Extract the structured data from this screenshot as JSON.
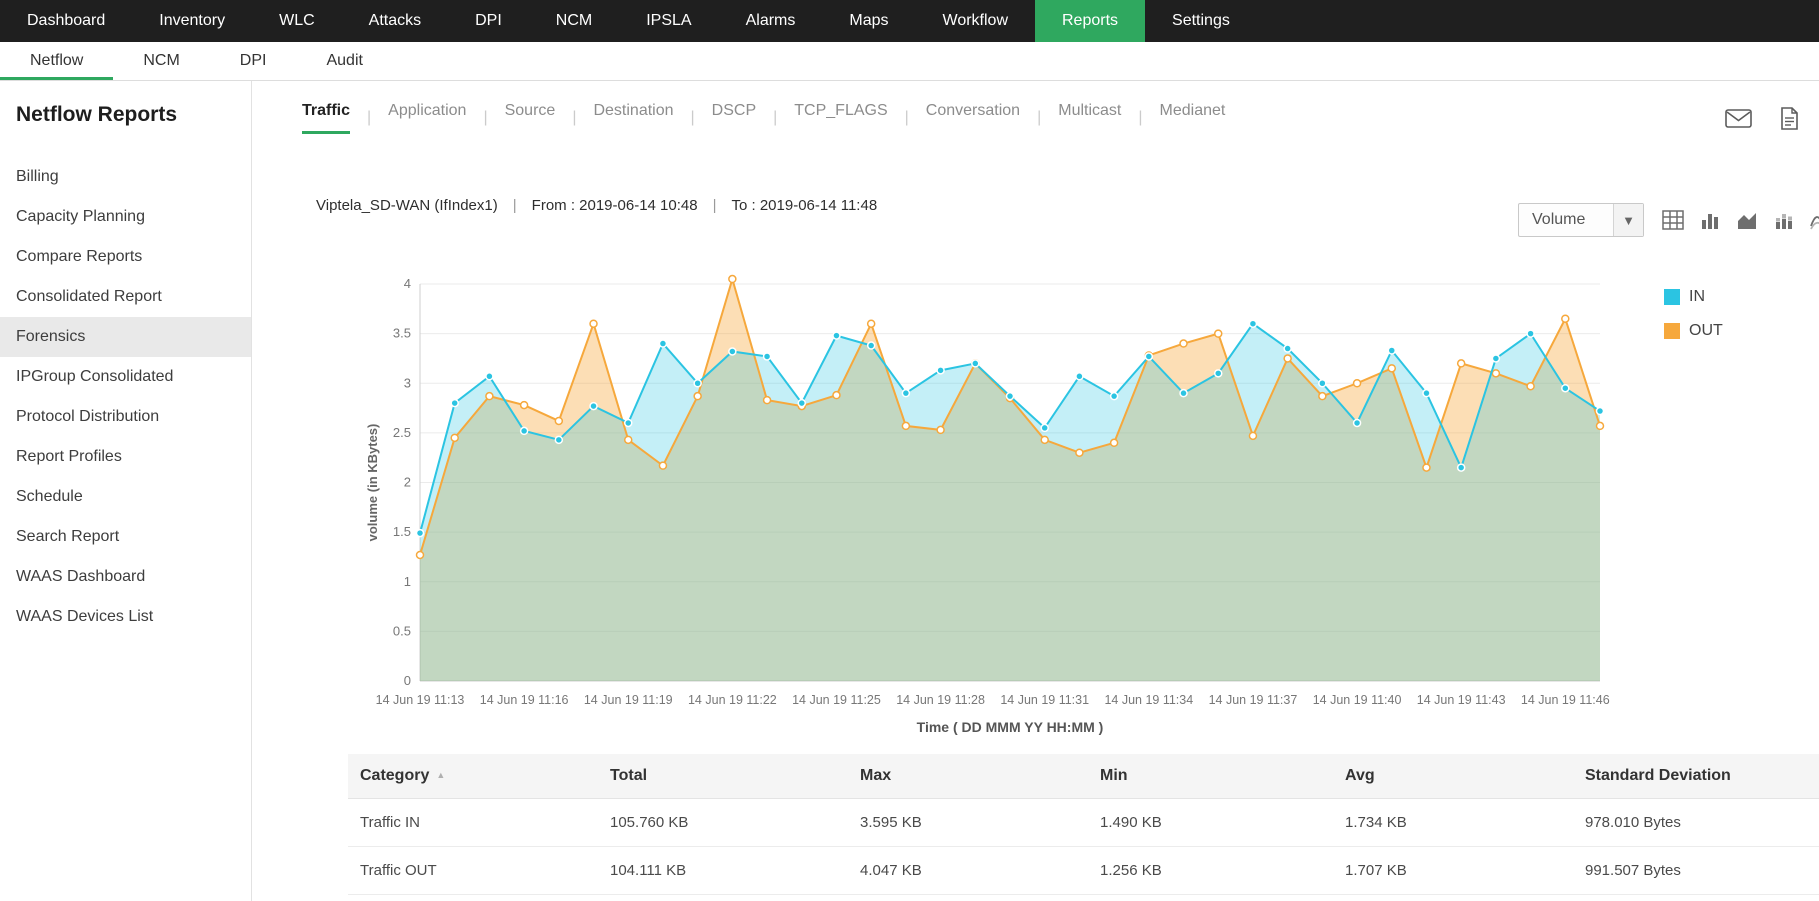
{
  "colors": {
    "accent": "#2fa85f",
    "series_in": "#2bc4e2",
    "series_out": "#f6a83c"
  },
  "top_nav": {
    "items": [
      {
        "label": "Dashboard",
        "active": false
      },
      {
        "label": "Inventory",
        "active": false
      },
      {
        "label": "WLC",
        "active": false
      },
      {
        "label": "Attacks",
        "active": false
      },
      {
        "label": "DPI",
        "active": false
      },
      {
        "label": "NCM",
        "active": false
      },
      {
        "label": "IPSLA",
        "active": false
      },
      {
        "label": "Alarms",
        "active": false
      },
      {
        "label": "Maps",
        "active": false
      },
      {
        "label": "Workflow",
        "active": false
      },
      {
        "label": "Reports",
        "active": true
      },
      {
        "label": "Settings",
        "active": false
      }
    ]
  },
  "sub_nav": {
    "items": [
      {
        "label": "Netflow",
        "active": true
      },
      {
        "label": "NCM",
        "active": false
      },
      {
        "label": "DPI",
        "active": false
      },
      {
        "label": "Audit",
        "active": false
      }
    ]
  },
  "sidebar": {
    "title": "Netflow Reports",
    "items": [
      {
        "label": "Billing",
        "selected": false
      },
      {
        "label": "Capacity Planning",
        "selected": false
      },
      {
        "label": "Compare Reports",
        "selected": false
      },
      {
        "label": "Consolidated Report",
        "selected": false
      },
      {
        "label": "Forensics",
        "selected": true
      },
      {
        "label": "IPGroup Consolidated",
        "selected": false
      },
      {
        "label": "Protocol Distribution",
        "selected": false
      },
      {
        "label": "Report Profiles",
        "selected": false
      },
      {
        "label": "Schedule",
        "selected": false
      },
      {
        "label": "Search Report",
        "selected": false
      },
      {
        "label": "WAAS Dashboard",
        "selected": false
      },
      {
        "label": "WAAS Devices List",
        "selected": false
      }
    ]
  },
  "report": {
    "tabs": [
      {
        "label": "Traffic",
        "active": true
      },
      {
        "label": "Application",
        "active": false
      },
      {
        "label": "Source",
        "active": false
      },
      {
        "label": "Destination",
        "active": false
      },
      {
        "label": "DSCP",
        "active": false
      },
      {
        "label": "TCP_FLAGS",
        "active": false
      },
      {
        "label": "Conversation",
        "active": false
      },
      {
        "label": "Multicast",
        "active": false
      },
      {
        "label": "Medianet",
        "active": false
      }
    ],
    "meta": {
      "device": "Viptela_SD-WAN (IfIndex1)",
      "from": "From : 2019-06-14 10:48",
      "to": "To : 2019-06-14 11:48"
    },
    "view_select": {
      "value": "Volume"
    },
    "icons": {
      "export": [
        "mail-icon",
        "pdf-file-icon"
      ],
      "chart_types": [
        "table-view-icon",
        "bar-chart-icon",
        "area-chart-icon",
        "stacked-bar-chart-icon",
        "spline-chart-icon"
      ],
      "sort": "sort-ascending-icon",
      "caret": "caret-down-icon"
    }
  },
  "chart_data": {
    "type": "area",
    "title": "",
    "xlabel": "Time ( DD MMM YY HH:MM )",
    "ylabel": "volume (in KBytes)",
    "ylim": [
      0,
      4
    ],
    "ytick_step": 0.5,
    "grid": true,
    "legend_position": "right",
    "x_tick_every": 3,
    "x": [
      "14 Jun 19 11:13",
      "14 Jun 19 11:14",
      "14 Jun 19 11:15",
      "14 Jun 19 11:16",
      "14 Jun 19 11:17",
      "14 Jun 19 11:18",
      "14 Jun 19 11:19",
      "14 Jun 19 11:20",
      "14 Jun 19 11:21",
      "14 Jun 19 11:22",
      "14 Jun 19 11:23",
      "14 Jun 19 11:24",
      "14 Jun 19 11:25",
      "14 Jun 19 11:26",
      "14 Jun 19 11:27",
      "14 Jun 19 11:28",
      "14 Jun 19 11:29",
      "14 Jun 19 11:30",
      "14 Jun 19 11:31",
      "14 Jun 19 11:32",
      "14 Jun 19 11:33",
      "14 Jun 19 11:34",
      "14 Jun 19 11:35",
      "14 Jun 19 11:36",
      "14 Jun 19 11:37",
      "14 Jun 19 11:38",
      "14 Jun 19 11:39",
      "14 Jun 19 11:40",
      "14 Jun 19 11:41",
      "14 Jun 19 11:42",
      "14 Jun 19 11:43",
      "14 Jun 19 11:44",
      "14 Jun 19 11:45",
      "14 Jun 19 11:46",
      "14 Jun 19 11:47"
    ],
    "series": [
      {
        "name": "IN",
        "color": "#2bc4e2",
        "values": [
          1.49,
          2.8,
          3.07,
          2.52,
          2.43,
          2.77,
          2.6,
          3.4,
          3.0,
          3.32,
          3.27,
          2.8,
          3.48,
          3.38,
          2.9,
          3.13,
          3.2,
          2.87,
          2.55,
          3.07,
          2.87,
          3.27,
          2.9,
          3.1,
          3.6,
          3.35,
          3.0,
          2.6,
          3.33,
          2.9,
          2.15,
          3.25,
          3.5,
          2.95,
          2.72
        ]
      },
      {
        "name": "OUT",
        "color": "#f6a83c",
        "values": [
          1.27,
          2.45,
          2.87,
          2.78,
          2.62,
          3.6,
          2.43,
          2.17,
          2.87,
          4.05,
          2.83,
          2.77,
          2.88,
          3.6,
          2.57,
          2.53,
          3.2,
          2.85,
          2.43,
          2.3,
          2.4,
          3.28,
          3.4,
          3.5,
          2.47,
          3.25,
          2.87,
          3.0,
          3.15,
          2.15,
          3.2,
          3.1,
          2.97,
          3.65,
          2.57
        ]
      }
    ]
  },
  "summary_table": {
    "columns": [
      "Category",
      "Total",
      "Max",
      "Min",
      "Avg",
      "Standard Deviation"
    ],
    "rows": [
      [
        "Traffic IN",
        "105.760 KB",
        "3.595 KB",
        "1.490 KB",
        "1.734 KB",
        "978.010 Bytes"
      ],
      [
        "Traffic OUT",
        "104.111 KB",
        "4.047 KB",
        "1.256 KB",
        "1.707 KB",
        "991.507 Bytes"
      ]
    ]
  }
}
